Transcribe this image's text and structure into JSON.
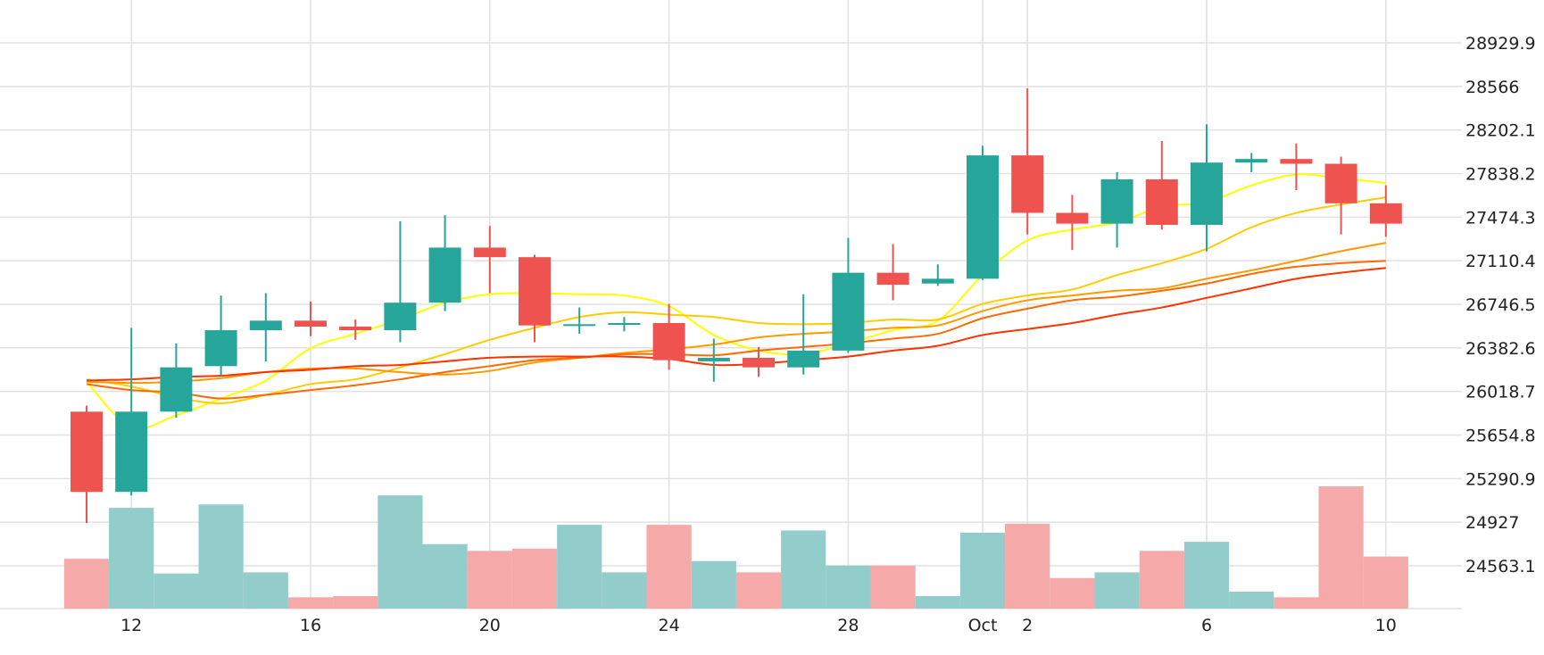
{
  "chart_data": {
    "type": "candlestick",
    "grid": true,
    "y_axis": {
      "position": "right",
      "ticks": [
        24563.1,
        24927,
        25290.9,
        25654.8,
        26018.7,
        26382.6,
        26746.5,
        27110.4,
        27474.3,
        27838.2,
        28202.1,
        28566,
        28929.9
      ],
      "tick_labels": [
        "24563.1",
        "24927",
        "25290.9",
        "25654.8",
        "26018.7",
        "26382.6",
        "26746.5",
        "27110.4",
        "27474.3",
        "27838.2",
        "28202.1",
        "28566",
        "28929.9"
      ]
    },
    "x_axis": {
      "ticks": [
        {
          "date": "2023-09-12",
          "label": "12"
        },
        {
          "date": "2023-09-16",
          "label": "16"
        },
        {
          "date": "2023-09-20",
          "label": "20"
        },
        {
          "date": "2023-09-24",
          "label": "24"
        },
        {
          "date": "2023-09-28",
          "label": "28"
        },
        {
          "date": "2023-10-01",
          "label": "Oct"
        },
        {
          "date": "2023-10-02",
          "label": "2"
        },
        {
          "date": "2023-10-06",
          "label": "6"
        },
        {
          "date": "2023-10-10",
          "label": "10"
        }
      ]
    },
    "candles": [
      {
        "date": "2023-09-11",
        "open": 25850,
        "high": 25900,
        "low": 24920,
        "close": 25180
      },
      {
        "date": "2023-09-12",
        "open": 25180,
        "high": 26550,
        "low": 25150,
        "close": 25850
      },
      {
        "date": "2023-09-13",
        "open": 25850,
        "high": 26420,
        "low": 25800,
        "close": 26220
      },
      {
        "date": "2023-09-14",
        "open": 26230,
        "high": 26820,
        "low": 26150,
        "close": 26530
      },
      {
        "date": "2023-09-15",
        "open": 26530,
        "high": 26840,
        "low": 26270,
        "close": 26610
      },
      {
        "date": "2023-09-16",
        "open": 26610,
        "high": 26770,
        "low": 26480,
        "close": 26560
      },
      {
        "date": "2023-09-17",
        "open": 26560,
        "high": 26620,
        "low": 26450,
        "close": 26530
      },
      {
        "date": "2023-09-18",
        "open": 26530,
        "high": 27440,
        "low": 26430,
        "close": 26760
      },
      {
        "date": "2023-09-19",
        "open": 26760,
        "high": 27490,
        "low": 26690,
        "close": 27220
      },
      {
        "date": "2023-09-20",
        "open": 27220,
        "high": 27400,
        "low": 26840,
        "close": 27140
      },
      {
        "date": "2023-09-21",
        "open": 27140,
        "high": 27160,
        "low": 26430,
        "close": 26570
      },
      {
        "date": "2023-09-22",
        "open": 26570,
        "high": 26720,
        "low": 26500,
        "close": 26580
      },
      {
        "date": "2023-09-23",
        "open": 26580,
        "high": 26640,
        "low": 26520,
        "close": 26590
      },
      {
        "date": "2023-09-24",
        "open": 26590,
        "high": 26750,
        "low": 26200,
        "close": 26280
      },
      {
        "date": "2023-09-25",
        "open": 26270,
        "high": 26460,
        "low": 26100,
        "close": 26300
      },
      {
        "date": "2023-09-26",
        "open": 26300,
        "high": 26390,
        "low": 26140,
        "close": 26220
      },
      {
        "date": "2023-09-27",
        "open": 26220,
        "high": 26830,
        "low": 26160,
        "close": 26360
      },
      {
        "date": "2023-09-28",
        "open": 26360,
        "high": 27300,
        "low": 26340,
        "close": 27010
      },
      {
        "date": "2023-09-29",
        "open": 27010,
        "high": 27250,
        "low": 26780,
        "close": 26910
      },
      {
        "date": "2023-09-30",
        "open": 26920,
        "high": 27080,
        "low": 26900,
        "close": 26960
      },
      {
        "date": "2023-10-01",
        "open": 26960,
        "high": 28070,
        "low": 26950,
        "close": 27990
      },
      {
        "date": "2023-10-02",
        "open": 27990,
        "high": 28550,
        "low": 27330,
        "close": 27510
      },
      {
        "date": "2023-10-03",
        "open": 27510,
        "high": 27660,
        "low": 27200,
        "close": 27420
      },
      {
        "date": "2023-10-04",
        "open": 27420,
        "high": 27850,
        "low": 27220,
        "close": 27790
      },
      {
        "date": "2023-10-05",
        "open": 27790,
        "high": 28110,
        "low": 27370,
        "close": 27410
      },
      {
        "date": "2023-10-06",
        "open": 27410,
        "high": 28250,
        "low": 27190,
        "close": 27930
      },
      {
        "date": "2023-10-07",
        "open": 27930,
        "high": 28010,
        "low": 27850,
        "close": 27960
      },
      {
        "date": "2023-10-08",
        "open": 27960,
        "high": 28090,
        "low": 27700,
        "close": 27920
      },
      {
        "date": "2023-10-09",
        "open": 27920,
        "high": 27980,
        "low": 27330,
        "close": 27590
      },
      {
        "date": "2023-10-10",
        "open": 27590,
        "high": 27740,
        "low": 27310,
        "close": 27420
      }
    ],
    "volume": {
      "scale": [
        0,
        1
      ],
      "values": [
        0.44,
        0.89,
        0.31,
        0.92,
        0.32,
        0.1,
        0.11,
        1.0,
        0.57,
        0.51,
        0.53,
        0.74,
        0.32,
        0.74,
        0.42,
        0.32,
        0.69,
        0.38,
        0.38,
        0.11,
        0.67,
        0.75,
        0.27,
        0.32,
        0.51,
        0.59,
        0.15,
        0.1,
        1.08,
        0.46
      ]
    },
    "moving_averages": [
      {
        "color": "#ffff00",
        "values": [
          26100,
          25720,
          25820,
          25960,
          26110,
          26380,
          26500,
          26620,
          26760,
          26830,
          26840,
          26830,
          26820,
          26730,
          26490,
          26360,
          26330,
          26420,
          26530,
          26610,
          26990,
          27280,
          27370,
          27430,
          27560,
          27600,
          27740,
          27830,
          27800,
          27760
        ]
      },
      {
        "color": "#ffcc00",
        "values": [
          26120,
          26060,
          25970,
          25920,
          25990,
          26080,
          26120,
          26220,
          26330,
          26450,
          26550,
          26640,
          26680,
          26660,
          26640,
          26590,
          26580,
          26590,
          26620,
          26620,
          26750,
          26820,
          26870,
          26990,
          27090,
          27210,
          27390,
          27510,
          27580,
          27640
        ]
      },
      {
        "color": "#ff9900",
        "values": [
          26100,
          26090,
          26100,
          26130,
          26180,
          26210,
          26210,
          26180,
          26160,
          26190,
          26260,
          26300,
          26340,
          26370,
          26410,
          26470,
          26500,
          26520,
          26550,
          26570,
          26690,
          26780,
          26820,
          26860,
          26880,
          26960,
          27030,
          27110,
          27190,
          27260
        ]
      },
      {
        "color": "#ff6a00",
        "values": [
          26080,
          26030,
          26010,
          25960,
          25990,
          26030,
          26070,
          26120,
          26180,
          26230,
          26280,
          26300,
          26330,
          26330,
          26320,
          26360,
          26390,
          26420,
          26460,
          26500,
          26630,
          26710,
          26780,
          26810,
          26860,
          26920,
          27000,
          27060,
          27090,
          27110
        ]
      },
      {
        "color": "#ff3300",
        "values": [
          26110,
          26120,
          26140,
          26150,
          26180,
          26200,
          26230,
          26240,
          26270,
          26300,
          26310,
          26310,
          26310,
          26290,
          26240,
          26250,
          26280,
          26310,
          26360,
          26400,
          26490,
          26540,
          26590,
          26660,
          26720,
          26800,
          26880,
          26960,
          27010,
          27050
        ]
      }
    ],
    "colors": {
      "up": "#26a69a",
      "down": "#ef5350",
      "up_volume": "#92cccb",
      "down_volume": "#f5a9a8",
      "grid": "#e1e1e1"
    }
  }
}
